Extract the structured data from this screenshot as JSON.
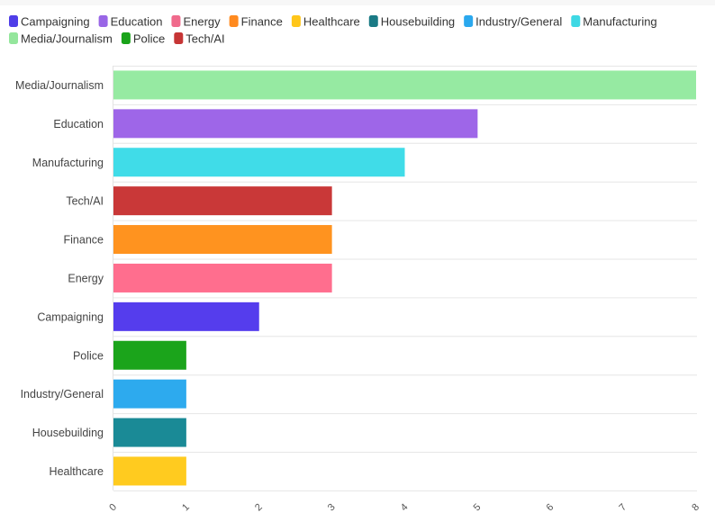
{
  "chart_data": {
    "type": "bar",
    "orientation": "horizontal",
    "title": "",
    "xlabel": "",
    "ylabel": "",
    "xlim": [
      0,
      8
    ],
    "x_ticks": [
      "0",
      "1",
      "2",
      "3",
      "4",
      "5",
      "6",
      "7",
      "8"
    ],
    "grid": true,
    "legend_position": "top-left",
    "legend": [
      {
        "label": "Campaigning",
        "color": "#4f3ee8"
      },
      {
        "label": "Education",
        "color": "#9966e6"
      },
      {
        "label": "Energy",
        "color": "#f06a8c"
      },
      {
        "label": "Finance",
        "color": "#ff8a1f"
      },
      {
        "label": "Healthcare",
        "color": "#ffc61a"
      },
      {
        "label": "Housebuilding",
        "color": "#1a7a85"
      },
      {
        "label": "Industry/General",
        "color": "#2aa8ee"
      },
      {
        "label": "Manufacturing",
        "color": "#3ed8e4"
      },
      {
        "label": "Media/Journalism",
        "color": "#94e69c"
      },
      {
        "label": "Police",
        "color": "#1aa31a"
      },
      {
        "label": "Tech/AI",
        "color": "#c63535"
      }
    ],
    "bars": [
      {
        "category": "Media/Journalism",
        "value": 8,
        "color": "#96eaa2"
      },
      {
        "category": "Education",
        "value": 5,
        "color": "#9e66e8"
      },
      {
        "category": "Manufacturing",
        "value": 4,
        "color": "#40dce8"
      },
      {
        "category": "Tech/AI",
        "value": 3,
        "color": "#c93838"
      },
      {
        "category": "Finance",
        "value": 3,
        "color": "#ff931f"
      },
      {
        "category": "Energy",
        "value": 3,
        "color": "#ff6e8e"
      },
      {
        "category": "Campaigning",
        "value": 2,
        "color": "#553ded"
      },
      {
        "category": "Police",
        "value": 1,
        "color": "#1ba41b"
      },
      {
        "category": "Industry/General",
        "value": 1,
        "color": "#2daaee"
      },
      {
        "category": "Housebuilding",
        "value": 1,
        "color": "#1a8a96"
      },
      {
        "category": "Healthcare",
        "value": 1,
        "color": "#ffcb1f"
      }
    ]
  }
}
